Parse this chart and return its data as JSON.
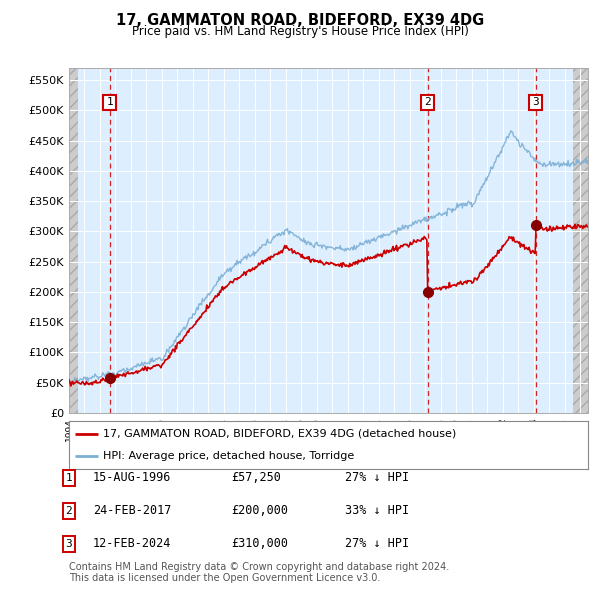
{
  "title": "17, GAMMATON ROAD, BIDEFORD, EX39 4DG",
  "subtitle": "Price paid vs. HM Land Registry's House Price Index (HPI)",
  "ylabel_ticks": [
    "£0",
    "£50K",
    "£100K",
    "£150K",
    "£200K",
    "£250K",
    "£300K",
    "£350K",
    "£400K",
    "£450K",
    "£500K",
    "£550K"
  ],
  "ytick_values": [
    0,
    50000,
    100000,
    150000,
    200000,
    250000,
    300000,
    350000,
    400000,
    450000,
    500000,
    550000
  ],
  "xmin": 1994.0,
  "xmax": 2027.5,
  "ymin": 0,
  "ymax": 570000,
  "hpi_color": "#7bafd4",
  "price_color": "#cc0000",
  "plot_bg_color": "#ddeeff",
  "hatch_color": "#c8c8c8",
  "legend_label_price": "17, GAMMATON ROAD, BIDEFORD, EX39 4DG (detached house)",
  "legend_label_hpi": "HPI: Average price, detached house, Torridge",
  "transactions": [
    {
      "num": 1,
      "date": "15-AUG-1996",
      "price": 57250,
      "year": 1996.62,
      "hpi_pct": "27% ↓ HPI"
    },
    {
      "num": 2,
      "date": "24-FEB-2017",
      "price": 200000,
      "year": 2017.15,
      "hpi_pct": "33% ↓ HPI"
    },
    {
      "num": 3,
      "date": "12-FEB-2024",
      "price": 310000,
      "year": 2024.12,
      "hpi_pct": "27% ↓ HPI"
    }
  ],
  "footnote1": "Contains HM Land Registry data © Crown copyright and database right 2024.",
  "footnote2": "This data is licensed under the Open Government Licence v3.0."
}
